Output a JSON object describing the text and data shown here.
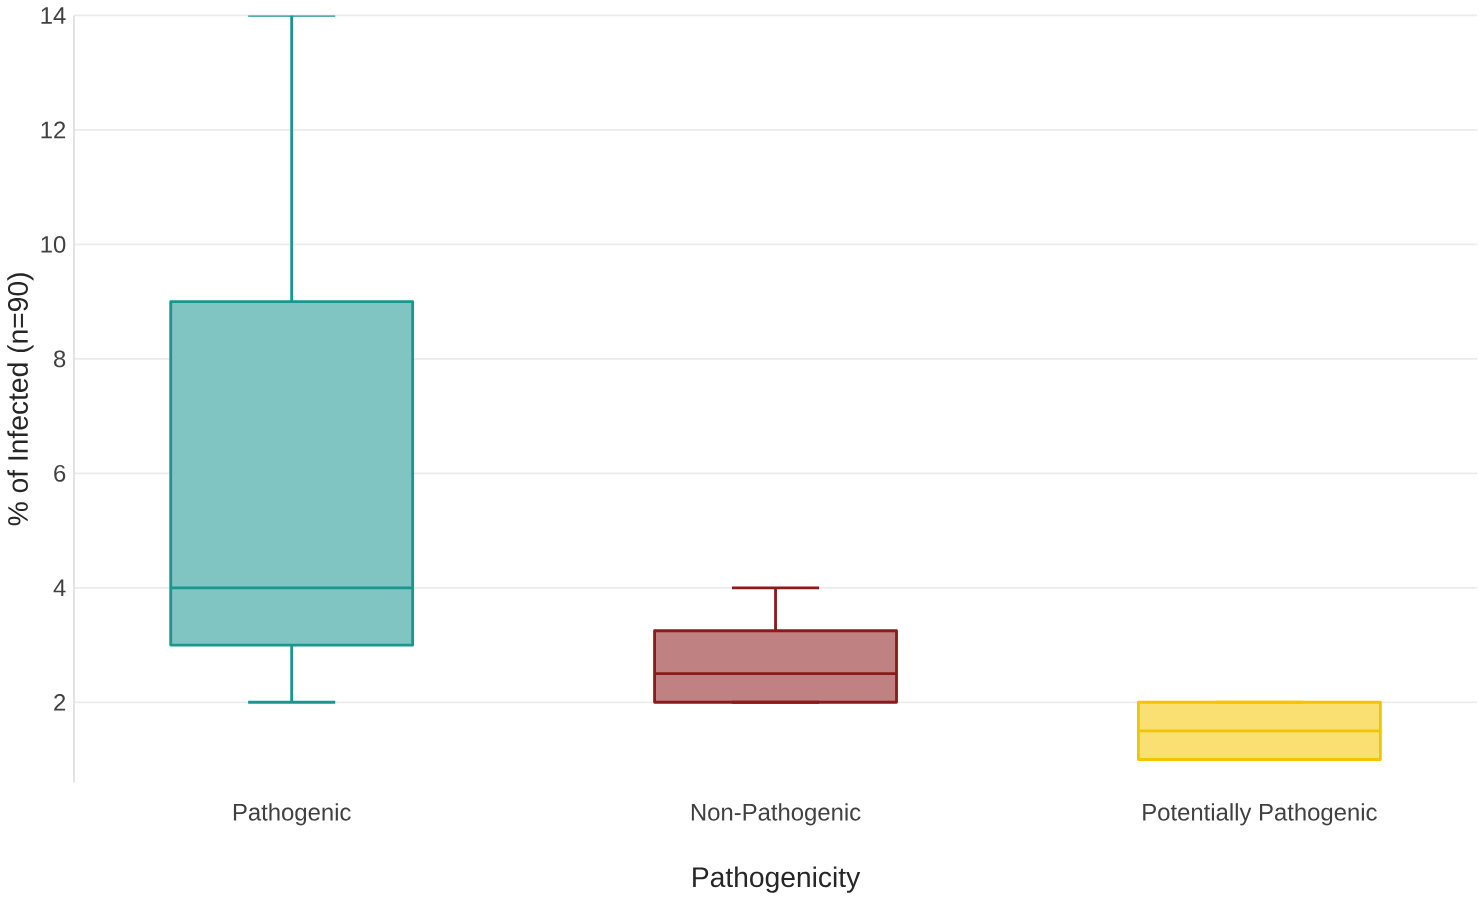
{
  "chart_data": {
    "type": "box",
    "xlabel": "Pathogenicity",
    "ylabel": "% of Infected (n=90)",
    "categories": [
      "Pathogenic",
      "Non-Pathogenic",
      "Potentially Pathogenic"
    ],
    "colors": [
      "#1a9690",
      "#8b1a1a",
      "#f5c400"
    ],
    "boxes": [
      {
        "low": 2,
        "q1": 3,
        "median": 4,
        "q3": 9,
        "high": 14
      },
      {
        "low": 2,
        "q1": 2,
        "median": 2.5,
        "q3": 3.25,
        "high": 4
      },
      {
        "low": 1,
        "q1": 1,
        "median": 1.5,
        "q3": 2,
        "high": 2
      }
    ],
    "ylim": [
      0.6,
      14
    ],
    "yticks": [
      2,
      4,
      6,
      8,
      10,
      12,
      14
    ],
    "grid": "y"
  }
}
